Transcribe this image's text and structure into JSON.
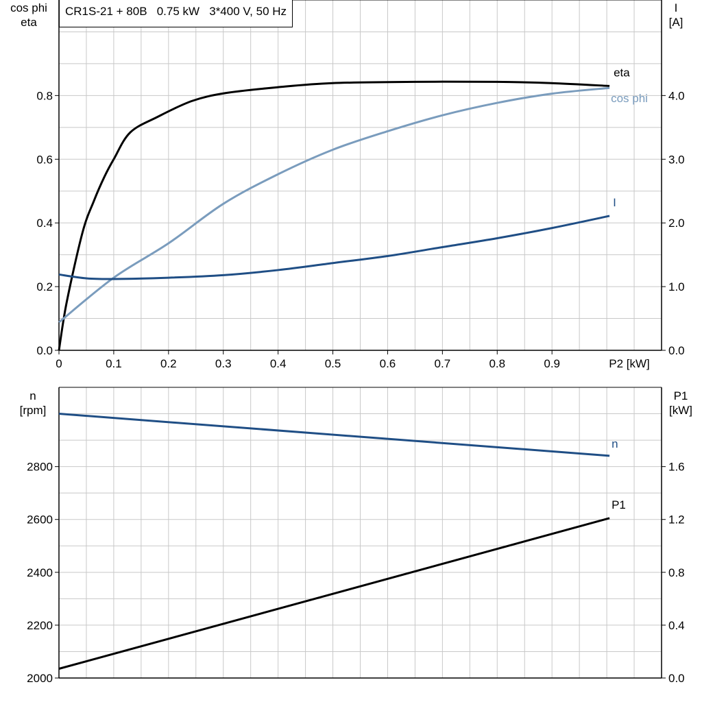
{
  "chart_data": [
    {
      "type": "line",
      "title": "CR1S-21 + 80B   0.75 kW   3*400 V, 50 Hz",
      "xlabel": "P2 [kW]",
      "ylabel_left": [
        "cos phi",
        "eta"
      ],
      "ylabel_right": [
        "I",
        "[A]"
      ],
      "xlim": [
        0,
        1.1
      ],
      "ylim_left": [
        0,
        1.1
      ],
      "ylim_right": [
        0,
        5.5
      ],
      "x_ticks": [
        "0",
        "0.1",
        "0.2",
        "0.3",
        "0.4",
        "0.5",
        "0.6",
        "0.7",
        "0.8",
        "0.9"
      ],
      "y_ticks_left": [
        "0.0",
        "0.2",
        "0.4",
        "0.6",
        "0.8"
      ],
      "y_ticks_right": [
        "0.0",
        "1.0",
        "2.0",
        "3.0",
        "4.0"
      ],
      "grid": true,
      "series": [
        {
          "name": "eta",
          "axis": "left",
          "color": "#000000",
          "x": [
            0,
            0.014,
            0.043,
            0.064,
            0.083,
            0.1,
            0.13,
            0.18,
            0.243,
            0.305,
            0.399,
            0.499,
            0.649,
            0.799,
            0.899,
            1.005
          ],
          "y": [
            0,
            0.15,
            0.37,
            0.47,
            0.545,
            0.6,
            0.684,
            0.733,
            0.783,
            0.808,
            0.826,
            0.839,
            0.843,
            0.843,
            0.839,
            0.83
          ]
        },
        {
          "name": "cos phi",
          "axis": "left",
          "color": "#7a9cbd",
          "x": [
            0,
            0.1,
            0.2,
            0.3,
            0.4,
            0.5,
            0.6,
            0.7,
            0.8,
            0.9,
            1.005
          ],
          "y": [
            0.088,
            0.228,
            0.336,
            0.46,
            0.553,
            0.63,
            0.688,
            0.738,
            0.777,
            0.806,
            0.824
          ]
        },
        {
          "name": "I",
          "axis": "right",
          "color": "#1f4e85",
          "x": [
            0,
            0.05,
            0.1,
            0.2,
            0.3,
            0.4,
            0.5,
            0.6,
            0.7,
            0.8,
            0.9,
            1.005
          ],
          "y": [
            1.19,
            1.13,
            1.12,
            1.14,
            1.18,
            1.26,
            1.37,
            1.48,
            1.62,
            1.76,
            1.92,
            2.11
          ]
        }
      ]
    },
    {
      "type": "line",
      "ylabel_left": [
        "n",
        "[rpm]"
      ],
      "ylabel_right": [
        "P1",
        "[kW]"
      ],
      "xlim": [
        0,
        1.1
      ],
      "ylim_left": [
        2000,
        3100
      ],
      "ylim_right": [
        0,
        2.2
      ],
      "y_ticks_left": [
        "2000",
        "2200",
        "2400",
        "2600",
        "2800"
      ],
      "y_ticks_right": [
        "0.0",
        "0.4",
        "0.8",
        "1.2",
        "1.6"
      ],
      "grid": true,
      "series": [
        {
          "name": "n",
          "axis": "left",
          "color": "#1f4e85",
          "x": [
            0,
            1.005
          ],
          "y": [
            3000,
            2841
          ]
        },
        {
          "name": "P1",
          "axis": "right",
          "color": "#000000",
          "x": [
            0,
            1.005
          ],
          "y": [
            0.07,
            1.21
          ]
        }
      ]
    }
  ]
}
